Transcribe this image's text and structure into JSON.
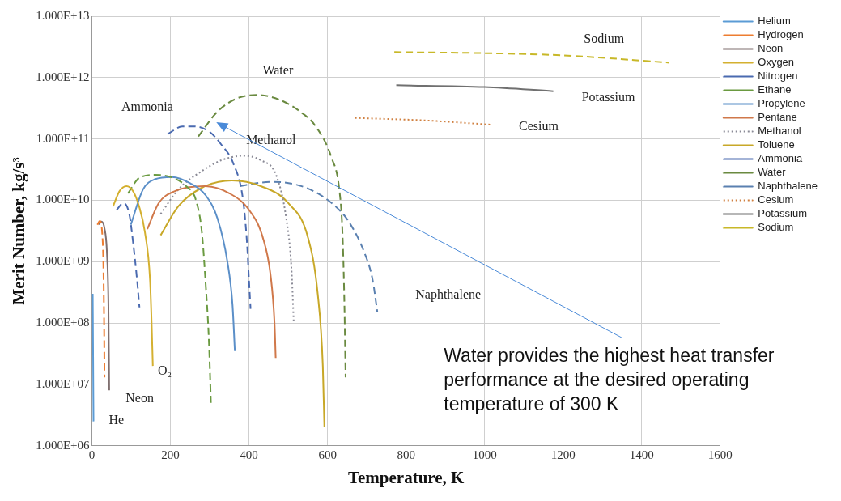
{
  "chart_data": {
    "type": "line",
    "xlabel": "Temperature, K",
    "ylabel": "Merit Number, kg/s³",
    "log": "y",
    "grid": true,
    "legend": "right",
    "marker": "none",
    "xlim": [
      0,
      1600
    ],
    "xticks": [
      0,
      200,
      400,
      600,
      800,
      1000,
      1200,
      1400,
      1600
    ],
    "ylim": [
      1000000,
      10000000000000
    ],
    "yticks": [
      {
        "value": 1000000,
        "label": "1.000E+06"
      },
      {
        "value": 10000000,
        "label": "1.000E+07"
      },
      {
        "value": 100000000,
        "label": "1.000E+08"
      },
      {
        "value": 1000000000,
        "label": "1.000E+09"
      },
      {
        "value": 10000000000,
        "label": "1.000E+10"
      },
      {
        "value": 100000000000,
        "label": "1.000E+11"
      },
      {
        "value": 1000000000000,
        "label": "1.000E+12"
      },
      {
        "value": 10000000000000,
        "label": "1.000E+13"
      }
    ],
    "series": [
      {
        "name": "Helium",
        "color": "#5b9bd5",
        "line_style": "solid",
        "x": [
          2,
          3,
          4
        ],
        "values": [
          300000000.0,
          30000000.0,
          2500000.0
        ]
      },
      {
        "name": "Hydrogen",
        "color": "#ed7d31",
        "line_style": "dashed",
        "x": [
          14,
          20,
          26,
          29,
          31,
          32
        ],
        "values": [
          4000000000.0,
          4600000000.0,
          3000000000.0,
          1000000000.0,
          100000000.0,
          13000000.0
        ]
      },
      {
        "name": "Neon",
        "color": "#7f6f6f",
        "line_style": "solid",
        "x": [
          18,
          24,
          32,
          38,
          42,
          44
        ],
        "values": [
          4000000000.0,
          4500000000.0,
          3500000000.0,
          1500000000.0,
          200000000.0,
          8000000.0
        ]
      },
      {
        "name": "Oxygen",
        "color": "#d4b030",
        "line_style": "solid",
        "x": [
          54,
          70,
          88,
          105,
          120,
          135,
          148,
          152,
          155
        ],
        "values": [
          8000000000.0,
          14000000000.0,
          17000000000.0,
          14000000000.0,
          8000000000.0,
          3000000000.0,
          500000000.0,
          100000000.0,
          20000000.0
        ]
      },
      {
        "name": "Nitrogen",
        "color": "#4a6ab0",
        "line_style": "dashed",
        "x": [
          63,
          80,
          95,
          105,
          115,
          121
        ],
        "values": [
          7000000000.0,
          9000000000.0,
          6000000000.0,
          2000000000.0,
          500000000.0,
          180000000.0
        ]
      },
      {
        "name": "Ethane",
        "color": "#6a9a40",
        "line_style": "dashed",
        "x": [
          92,
          120,
          160,
          200,
          240,
          265,
          280,
          290,
          298,
          303
        ],
        "values": [
          13000000000.0,
          23000000000.0,
          26000000000.0,
          24000000000.0,
          17000000000.0,
          10000000000.0,
          3000000000.0,
          400000000.0,
          50000000.0,
          5000000.0
        ]
      },
      {
        "name": "Propylene",
        "color": "#5b8fc8",
        "line_style": "solid",
        "x": [
          99,
          130,
          160,
          204,
          250,
          290,
          320,
          345,
          358,
          364
        ],
        "values": [
          4000000000.0,
          15000000000.0,
          22000000000.0,
          24000000000.0,
          19000000000.0,
          12000000000.0,
          5000000000.0,
          1000000000.0,
          200000000.0,
          35000000.0
        ]
      },
      {
        "name": "Pentane",
        "color": "#d0784a",
        "line_style": "solid",
        "x": [
          141,
          170,
          210,
          287,
          350,
          400,
          435,
          455,
          465,
          468
        ],
        "values": [
          3400000000.0,
          9000000000.0,
          14000000000.0,
          17000000000.0,
          13000000000.0,
          7000000000.0,
          2500000000.0,
          600000000.0,
          100000000.0,
          27000000.0
        ]
      },
      {
        "name": "Methanol",
        "color": "#8a8a96",
        "line_style": "dotted",
        "x": [
          175,
          220,
          280,
          330,
          384,
          430,
          470,
          495,
          508,
          514
        ],
        "values": [
          6000000000.0,
          15000000000.0,
          30000000000.0,
          45000000000.0,
          53000000000.0,
          45000000000.0,
          25000000000.0,
          5000000000.0,
          800000000.0,
          100000000.0
        ]
      },
      {
        "name": "Toluene",
        "color": "#c8a828",
        "line_style": "solid",
        "x": [
          175,
          220,
          280,
          357,
          430,
          500,
          550,
          575,
          588,
          592
        ],
        "values": [
          2700000000.0,
          8000000000.0,
          16000000000.0,
          21000000000.0,
          17000000000.0,
          9000000000.0,
          2500000000.0,
          300000000.0,
          20000000.0,
          2000000.0
        ]
      },
      {
        "name": "Ammonia",
        "color": "#4a6ab0",
        "line_style": "dashed",
        "x": [
          193,
          230,
          260,
          300,
          330,
          360,
          385,
          395,
          400,
          404
        ],
        "values": [
          120000000000.0,
          160000000000.0,
          160000000000.0,
          130000000000.0,
          80000000000.0,
          40000000000.0,
          10000000000.0,
          2000000000.0,
          500000000.0,
          170000000.0
        ]
      },
      {
        "name": "Water",
        "color": "#6a8a40",
        "line_style": "dashed",
        "x": [
          271,
          320,
          370,
          424,
          480,
          530,
          570,
          610,
          630,
          638,
          643,
          646
        ],
        "values": [
          110000000000.0,
          280000000000.0,
          460000000000.0,
          520000000000.0,
          430000000000.0,
          280000000000.0,
          160000000000.0,
          50000000000.0,
          15000000000.0,
          3000000000.0,
          200000000.0,
          13000000.0
        ]
      },
      {
        "name": "Naphthalene",
        "color": "#5a80b0",
        "line_style": "dashed",
        "x": [
          377,
          420,
          462,
          520,
          570,
          620,
          653,
          694,
          715,
          727
        ],
        "values": [
          17000000000.0,
          19000000000.0,
          20000000000.0,
          18000000000.0,
          13500000000.0,
          8000000000.0,
          4600000000.0,
          1400000000.0,
          500000000.0,
          150000000.0
        ]
      },
      {
        "name": "Cesium",
        "color": "#d08040",
        "line_style": "dotted",
        "x": [
          670,
          850,
          1020
        ],
        "values": [
          220000000000.0,
          200000000000.0,
          170000000000.0
        ]
      },
      {
        "name": "Potassium",
        "color": "#707070",
        "line_style": "solid",
        "x": [
          775,
          1000,
          1175
        ],
        "values": [
          750000000000.0,
          700000000000.0,
          600000000000.0
        ]
      },
      {
        "name": "Sodium",
        "color": "#c8b828",
        "line_style": "dashed",
        "x": [
          770,
          1000,
          1200,
          1470
        ],
        "values": [
          2600000000000.0,
          2500000000000.0,
          2300000000000.0,
          1750000000000.0
        ]
      }
    ],
    "annotations": [
      "Sodium",
      "Potassium",
      "Cesium",
      "Water",
      "Ammonia",
      "Methanol",
      "Naphthalene",
      "O₂",
      "Neon",
      "He",
      "Water provides the highest heat transfer performance at the desired operating temperature of 300 K"
    ]
  }
}
